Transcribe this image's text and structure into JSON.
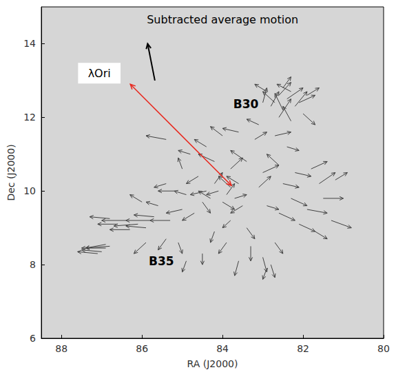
{
  "chart_data": {
    "type": "quiver",
    "xlabel": "RA (J2000)",
    "ylabel": "Dec (J2000)",
    "xlim": [
      88.5,
      80
    ],
    "ylim": [
      6,
      15
    ],
    "xticks": [
      80,
      82,
      84,
      86,
      88
    ],
    "yticks": [
      6,
      8,
      10,
      12,
      14
    ],
    "color": "#404040",
    "arrows": [
      {
        "x": 82.6,
        "y": 12.6,
        "u": -0.3,
        "v": 0.35
      },
      {
        "x": 82.7,
        "y": 12.4,
        "u": 0.3,
        "v": 0.3
      },
      {
        "x": 82.4,
        "y": 12.5,
        "u": -0.4,
        "v": 0.3
      },
      {
        "x": 82.2,
        "y": 12.3,
        "u": -0.3,
        "v": 0.4
      },
      {
        "x": 82.9,
        "y": 12.7,
        "u": 0.3,
        "v": 0.2
      },
      {
        "x": 82.5,
        "y": 12.2,
        "u": 0.2,
        "v": 0.45
      },
      {
        "x": 82.8,
        "y": 12.3,
        "u": -0.2,
        "v": 0.4
      },
      {
        "x": 82.3,
        "y": 12.7,
        "u": 0.35,
        "v": 0.2
      },
      {
        "x": 82.1,
        "y": 12.4,
        "u": -0.4,
        "v": 0.2
      },
      {
        "x": 83.0,
        "y": 12.4,
        "u": -0.1,
        "v": 0.4
      },
      {
        "x": 82.6,
        "y": 12.0,
        "u": -0.3,
        "v": 0.5
      },
      {
        "x": 82.0,
        "y": 12.1,
        "u": -0.3,
        "v": -0.3
      },
      {
        "x": 83.1,
        "y": 11.8,
        "u": 0.3,
        "v": 0.15
      },
      {
        "x": 82.3,
        "y": 11.9,
        "u": 0.2,
        "v": 0.4
      },
      {
        "x": 81.9,
        "y": 12.6,
        "u": -0.3,
        "v": 0.2
      },
      {
        "x": 82.5,
        "y": 12.8,
        "u": -0.2,
        "v": 0.3
      },
      {
        "x": 84.0,
        "y": 11.5,
        "u": 0.3,
        "v": 0.25
      },
      {
        "x": 83.6,
        "y": 11.6,
        "u": 0.4,
        "v": 0.1
      },
      {
        "x": 84.4,
        "y": 11.2,
        "u": 0.3,
        "v": 0.2
      },
      {
        "x": 83.2,
        "y": 11.4,
        "u": -0.3,
        "v": 0.2
      },
      {
        "x": 82.7,
        "y": 11.5,
        "u": -0.4,
        "v": 0.1
      },
      {
        "x": 82.4,
        "y": 11.2,
        "u": -0.3,
        "v": -0.1
      },
      {
        "x": 84.8,
        "y": 11.0,
        "u": 0.3,
        "v": 0.1
      },
      {
        "x": 85.4,
        "y": 11.4,
        "u": 0.5,
        "v": 0.1
      },
      {
        "x": 84.2,
        "y": 10.8,
        "u": 0.4,
        "v": 0.2
      },
      {
        "x": 83.8,
        "y": 10.6,
        "u": -0.3,
        "v": 0.3
      },
      {
        "x": 83.4,
        "y": 10.8,
        "u": 0.4,
        "v": 0.3
      },
      {
        "x": 83.0,
        "y": 10.5,
        "u": -0.4,
        "v": 0.2
      },
      {
        "x": 82.6,
        "y": 10.7,
        "u": 0.3,
        "v": 0.3
      },
      {
        "x": 82.2,
        "y": 10.5,
        "u": -0.4,
        "v": -0.1
      },
      {
        "x": 81.8,
        "y": 10.6,
        "u": -0.4,
        "v": 0.2
      },
      {
        "x": 84.6,
        "y": 10.4,
        "u": 0.3,
        "v": -0.2
      },
      {
        "x": 83.6,
        "y": 10.2,
        "u": 0.3,
        "v": 0.2
      },
      {
        "x": 83.1,
        "y": 10.1,
        "u": -0.3,
        "v": 0.3
      },
      {
        "x": 82.5,
        "y": 10.2,
        "u": -0.4,
        "v": -0.1
      },
      {
        "x": 81.6,
        "y": 10.2,
        "u": -0.4,
        "v": 0.3
      },
      {
        "x": 85.0,
        "y": 10.6,
        "u": 0.1,
        "v": 0.3
      },
      {
        "x": 85.4,
        "y": 10.2,
        "u": 0.3,
        "v": -0.1
      },
      {
        "x": 84.1,
        "y": 10.0,
        "u": 0.3,
        "v": -0.1
      },
      {
        "x": 83.9,
        "y": 9.9,
        "u": -0.2,
        "v": 0.3
      },
      {
        "x": 84.3,
        "y": 9.8,
        "u": 0.3,
        "v": 0.2
      },
      {
        "x": 83.8,
        "y": 10.1,
        "u": 0.3,
        "v": 0.3
      },
      {
        "x": 84.0,
        "y": 9.7,
        "u": -0.3,
        "v": -0.2
      },
      {
        "x": 84.2,
        "y": 10.2,
        "u": -0.2,
        "v": 0.3
      },
      {
        "x": 83.7,
        "y": 9.8,
        "u": -0.3,
        "v": 0.1
      },
      {
        "x": 84.4,
        "y": 10.0,
        "u": 0.4,
        "v": -0.1
      },
      {
        "x": 84.5,
        "y": 9.7,
        "u": -0.2,
        "v": -0.3
      },
      {
        "x": 83.5,
        "y": 9.6,
        "u": 0.3,
        "v": -0.2
      },
      {
        "x": 82.3,
        "y": 9.8,
        "u": -0.4,
        "v": -0.2
      },
      {
        "x": 81.9,
        "y": 9.5,
        "u": -0.5,
        "v": -0.1
      },
      {
        "x": 82.6,
        "y": 9.4,
        "u": -0.4,
        "v": -0.2
      },
      {
        "x": 81.5,
        "y": 9.8,
        "u": -0.5,
        "v": 0
      },
      {
        "x": 81.3,
        "y": 9.2,
        "u": -0.5,
        "v": -0.2
      },
      {
        "x": 82.1,
        "y": 9.1,
        "u": -0.4,
        "v": -0.2
      },
      {
        "x": 81.7,
        "y": 8.9,
        "u": -0.3,
        "v": -0.2
      },
      {
        "x": 82.9,
        "y": 9.6,
        "u": -0.3,
        "v": -0.1
      },
      {
        "x": 81.2,
        "y": 10.3,
        "u": -0.3,
        "v": 0.2
      },
      {
        "x": 83.3,
        "y": 8.5,
        "u": 0,
        "v": -0.4
      },
      {
        "x": 83.0,
        "y": 8.2,
        "u": -0.1,
        "v": -0.4
      },
      {
        "x": 83.6,
        "y": 8.1,
        "u": 0.1,
        "v": -0.4
      },
      {
        "x": 82.8,
        "y": 8.0,
        "u": -0.1,
        "v": -0.35
      },
      {
        "x": 83.9,
        "y": 8.6,
        "u": 0.2,
        "v": -0.3
      },
      {
        "x": 84.2,
        "y": 8.9,
        "u": 0.1,
        "v": -0.3
      },
      {
        "x": 82.7,
        "y": 8.6,
        "u": -0.2,
        "v": -0.3
      },
      {
        "x": 83.4,
        "y": 9.0,
        "u": -0.2,
        "v": -0.3
      },
      {
        "x": 84.5,
        "y": 8.3,
        "u": 0,
        "v": -0.3
      },
      {
        "x": 82.9,
        "y": 7.9,
        "u": 0.1,
        "v": -0.3
      },
      {
        "x": 83.8,
        "y": 9.2,
        "u": 0.2,
        "v": -0.2
      },
      {
        "x": 85.0,
        "y": 9.5,
        "u": 0.4,
        "v": -0.1
      },
      {
        "x": 85.3,
        "y": 9.2,
        "u": 0.5,
        "v": 0
      },
      {
        "x": 84.7,
        "y": 9.4,
        "u": 0.3,
        "v": -0.2
      },
      {
        "x": 85.6,
        "y": 9.6,
        "u": 0.3,
        "v": 0.1
      },
      {
        "x": 84.9,
        "y": 9.9,
        "u": 0.3,
        "v": 0.1
      },
      {
        "x": 85.4,
        "y": 8.7,
        "u": 0.2,
        "v": -0.3
      },
      {
        "x": 85.1,
        "y": 8.6,
        "u": -0.1,
        "v": -0.3
      },
      {
        "x": 86.0,
        "y": 9.7,
        "u": 0.3,
        "v": 0.2
      },
      {
        "x": 85.2,
        "y": 10.0,
        "u": 0.4,
        "v": 0
      },
      {
        "x": 85.8,
        "y": 9.2,
        "u": 0.6,
        "v": 0
      },
      {
        "x": 86.1,
        "y": 9.1,
        "u": 0.6,
        "v": -0.05
      },
      {
        "x": 86.4,
        "y": 9.2,
        "u": 0.6,
        "v": 0
      },
      {
        "x": 85.9,
        "y": 9.0,
        "u": 0.5,
        "v": 0.05
      },
      {
        "x": 86.3,
        "y": 8.95,
        "u": 0.5,
        "v": 0
      },
      {
        "x": 86.6,
        "y": 9.1,
        "u": 0.5,
        "v": 0
      },
      {
        "x": 85.7,
        "y": 9.3,
        "u": 0.5,
        "v": 0.05
      },
      {
        "x": 86.8,
        "y": 9.25,
        "u": 0.5,
        "v": 0.05
      },
      {
        "x": 86.9,
        "y": 8.45,
        "u": 0.6,
        "v": 0
      },
      {
        "x": 87.0,
        "y": 8.35,
        "u": 0.5,
        "v": 0.05
      },
      {
        "x": 86.8,
        "y": 8.5,
        "u": 0.6,
        "v": -0.05
      },
      {
        "x": 87.1,
        "y": 8.3,
        "u": 0.5,
        "v": 0.05
      },
      {
        "x": 86.9,
        "y": 8.55,
        "u": 0.5,
        "v": -0.1
      },
      {
        "x": 85.9,
        "y": 8.6,
        "u": 0.3,
        "v": -0.3
      },
      {
        "x": 84.9,
        "y": 8.1,
        "u": 0.1,
        "v": -0.3
      }
    ],
    "annotations": [
      {
        "text": "B30",
        "x": 83.42,
        "y": 12.36
      },
      {
        "text": "B35",
        "x": 85.52,
        "y": 8.1
      }
    ],
    "reference_arrow": {
      "text": "Subtracted average motion",
      "text_x": 84.0,
      "text_y": 14.65,
      "x": 85.68,
      "y": 13.0,
      "u": 0.18,
      "v": 1.0
    },
    "star_label": {
      "text": "λOri",
      "x": 87.06,
      "y": 13.2
    },
    "separation": {
      "x": [
        86.29,
        83.78
      ],
      "y": [
        12.9,
        10.15
      ],
      "color": "#e8261c"
    }
  }
}
